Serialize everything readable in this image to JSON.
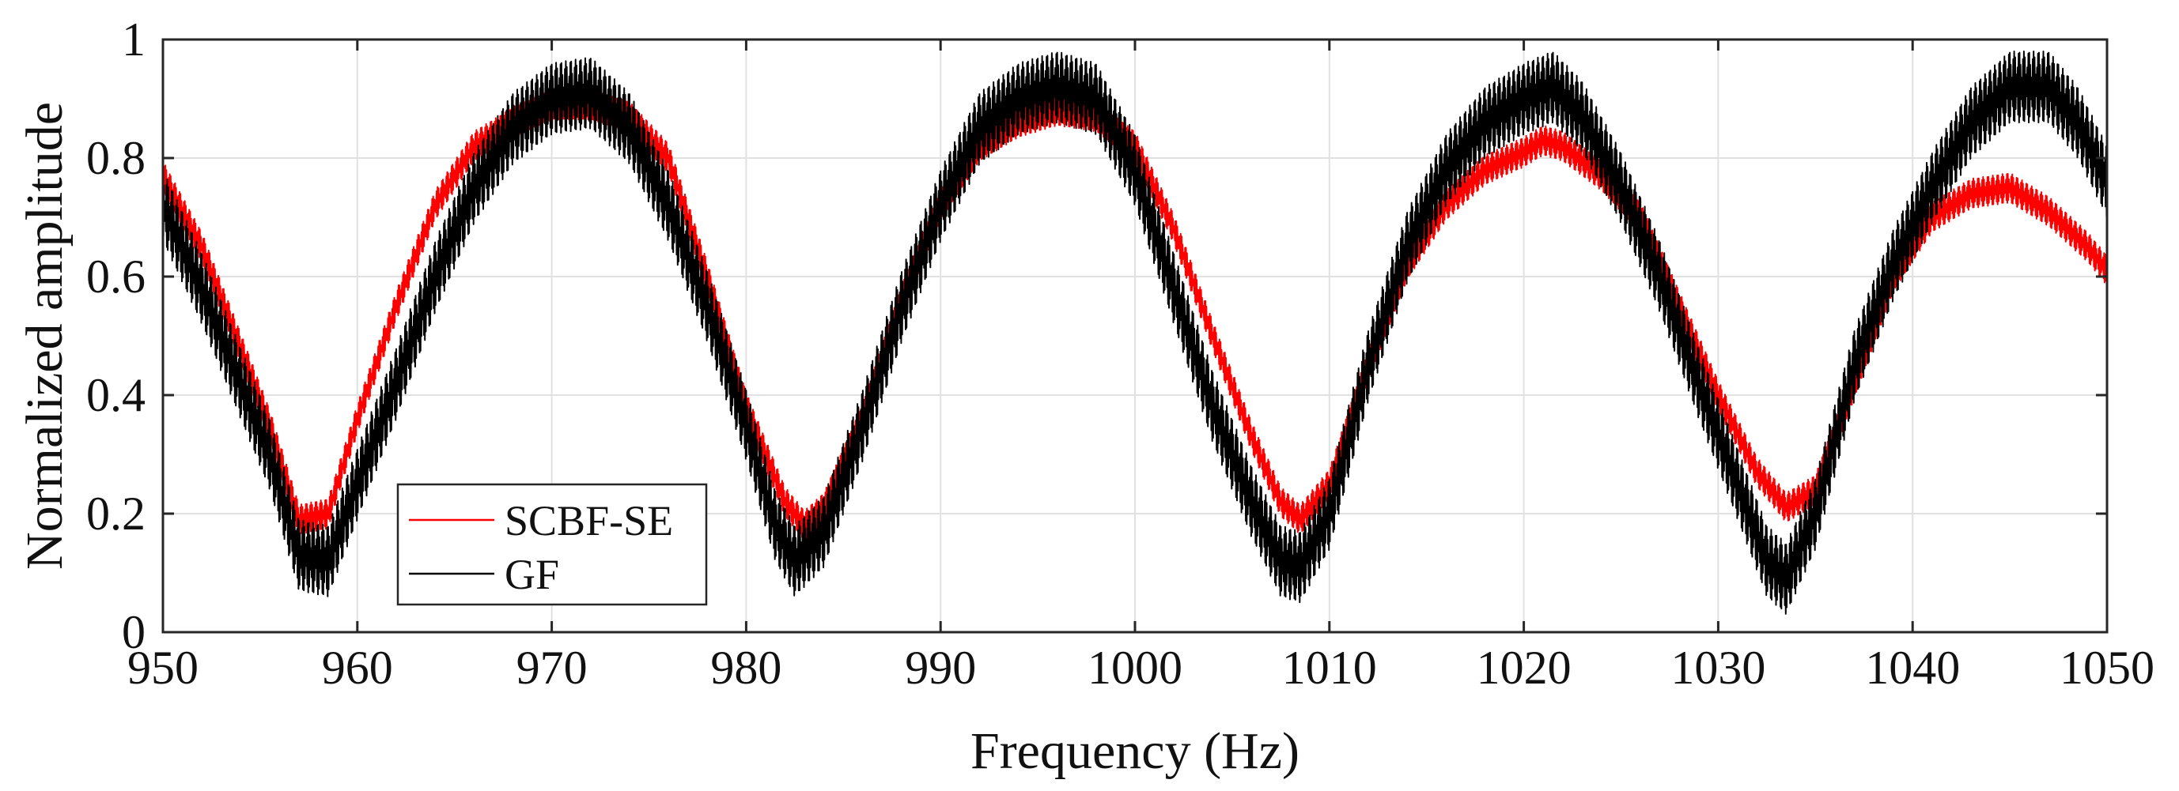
{
  "chart_data": {
    "type": "line",
    "title": "",
    "xlabel": "Frequency (Hz)",
    "ylabel": "Normalized amplitude",
    "xlim": [
      950,
      1050
    ],
    "ylim": [
      0,
      1
    ],
    "xticks": [
      950,
      960,
      970,
      980,
      990,
      1000,
      1010,
      1020,
      1030,
      1040,
      1050
    ],
    "yticks": [
      0,
      0.2,
      0.4,
      0.6,
      0.8,
      1
    ],
    "grid": true,
    "legend_position": "bottom-left",
    "series": [
      {
        "name": "SCBF-SE",
        "color": "#ff0000",
        "ripple": 0.025,
        "x": [
          950,
          952,
          954,
          955.5,
          957,
          958.5,
          960,
          962,
          964,
          966,
          968,
          970,
          972,
          974,
          976,
          978,
          980,
          982,
          983,
          984,
          986,
          988,
          990,
          992,
          994,
          996,
          998,
          1000,
          1002,
          1004,
          1006,
          1007.5,
          1008.5,
          1010,
          1012,
          1014,
          1016,
          1018,
          1020,
          1021,
          1022,
          1024,
          1026,
          1028,
          1030,
          1032,
          1033.5,
          1035,
          1037,
          1039,
          1041,
          1043,
          1045,
          1047,
          1049,
          1050
        ],
        "y": [
          0.77,
          0.65,
          0.48,
          0.35,
          0.19,
          0.2,
          0.36,
          0.55,
          0.72,
          0.82,
          0.86,
          0.89,
          0.89,
          0.87,
          0.8,
          0.6,
          0.38,
          0.22,
          0.18,
          0.21,
          0.36,
          0.56,
          0.72,
          0.82,
          0.86,
          0.88,
          0.87,
          0.82,
          0.68,
          0.5,
          0.33,
          0.22,
          0.19,
          0.25,
          0.45,
          0.62,
          0.72,
          0.78,
          0.81,
          0.83,
          0.82,
          0.77,
          0.7,
          0.55,
          0.4,
          0.27,
          0.21,
          0.24,
          0.42,
          0.6,
          0.7,
          0.74,
          0.75,
          0.71,
          0.65,
          0.61
        ]
      },
      {
        "name": "GF",
        "color": "#000000",
        "ripple": 0.06,
        "x": [
          950,
          952,
          954,
          955.5,
          957,
          958.5,
          960,
          962,
          964,
          966,
          968,
          970,
          972,
          974,
          976,
          978,
          980,
          981.5,
          982.5,
          984,
          986,
          988,
          990,
          992,
          994,
          996,
          998,
          1000,
          1002,
          1004,
          1006,
          1007.5,
          1008.5,
          1010,
          1012,
          1014,
          1016,
          1018,
          1020,
          1021.5,
          1023,
          1025,
          1027,
          1029,
          1031,
          1032.5,
          1033.5,
          1035,
          1037,
          1039,
          1041,
          1043,
          1045,
          1047,
          1048.5,
          1050
        ],
        "y": [
          0.72,
          0.58,
          0.42,
          0.3,
          0.13,
          0.12,
          0.25,
          0.42,
          0.6,
          0.75,
          0.85,
          0.9,
          0.91,
          0.85,
          0.72,
          0.55,
          0.35,
          0.18,
          0.12,
          0.17,
          0.35,
          0.55,
          0.72,
          0.85,
          0.9,
          0.92,
          0.9,
          0.78,
          0.58,
          0.38,
          0.22,
          0.12,
          0.11,
          0.2,
          0.45,
          0.65,
          0.78,
          0.86,
          0.9,
          0.92,
          0.87,
          0.75,
          0.6,
          0.42,
          0.25,
          0.12,
          0.09,
          0.2,
          0.45,
          0.62,
          0.75,
          0.86,
          0.92,
          0.92,
          0.86,
          0.76
        ]
      }
    ]
  }
}
